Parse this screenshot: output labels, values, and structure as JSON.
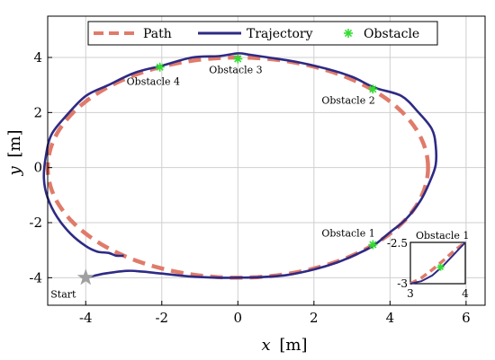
{
  "chart_data": {
    "type": "line",
    "xlabel_var": "x",
    "xlabel_unit": "[m]",
    "ylabel_var": "y",
    "ylabel_unit": "[m]",
    "xlim": [
      -5,
      6.5
    ],
    "ylim": [
      -5,
      5.5
    ],
    "xticks": [
      -4,
      -2,
      0,
      2,
      4,
      6
    ],
    "yticks": [
      -4,
      -2,
      0,
      2,
      4
    ],
    "xtick_labels": [
      "-4",
      "-2",
      "0",
      "2",
      "4",
      "6"
    ],
    "ytick_labels": [
      "-4",
      "-2",
      "0",
      "2",
      "4"
    ],
    "grid": true,
    "legend_position": "top",
    "legend": [
      {
        "name": "Path",
        "style": "dashed",
        "color": "#E07B6A"
      },
      {
        "name": "Trajectory",
        "style": "solid",
        "color": "#2E2A85"
      },
      {
        "name": "Obstacle",
        "style": "marker-asterisk",
        "color": "#33DD33"
      }
    ],
    "path": {
      "name": "Path",
      "shape": "ellipse",
      "center": [
        0,
        0
      ],
      "semi_axes": [
        5,
        4
      ],
      "color": "#E07B6A"
    },
    "trajectory": {
      "name": "Trajectory",
      "color": "#2E2A85",
      "x": [
        -4.0,
        -3.5,
        -2.9,
        -2.5,
        -2.0,
        -1.3,
        -0.5,
        0.0,
        0.6,
        1.3,
        2.0,
        2.6,
        3.2,
        3.6,
        4.0,
        4.4,
        4.8,
        5.05,
        5.2,
        5.2,
        5.1,
        4.75,
        4.3,
        3.6,
        3.0,
        2.3,
        1.5,
        0.8,
        0.3,
        0.0,
        -0.5,
        -1.2,
        -2.0,
        -2.7,
        -3.4,
        -4.0,
        -4.5,
        -4.9,
        -5.05,
        -5.1,
        -5.0,
        -4.75,
        -4.4,
        -4.0,
        -3.7,
        -3.4,
        -3.2,
        -3.0
      ],
      "y": [
        -4.0,
        -3.85,
        -3.75,
        -3.78,
        -3.85,
        -3.95,
        -4.0,
        -4.0,
        -3.98,
        -3.9,
        -3.7,
        -3.45,
        -3.1,
        -2.8,
        -2.35,
        -1.9,
        -1.2,
        -0.5,
        0.1,
        0.8,
        1.4,
        2.0,
        2.6,
        2.9,
        3.3,
        3.6,
        3.85,
        4.0,
        4.1,
        4.15,
        4.05,
        4.0,
        3.7,
        3.45,
        3.0,
        2.6,
        1.9,
        1.2,
        0.4,
        -0.4,
        -1.1,
        -1.8,
        -2.4,
        -2.85,
        -3.05,
        -3.1,
        -3.2,
        -3.2
      ]
    },
    "obstacles": [
      {
        "label": "Obstacle 1",
        "x": 3.55,
        "y": -2.8
      },
      {
        "label": "Obstacle 2",
        "x": 3.55,
        "y": 2.85
      },
      {
        "label": "Obstacle 3",
        "x": 0.0,
        "y": 3.95
      },
      {
        "label": "Obstacle 4",
        "x": -2.05,
        "y": 3.65
      }
    ],
    "start": {
      "label": "Start",
      "x": -4.0,
      "y": -4.0,
      "color": "#A0A0A0"
    },
    "inset": {
      "label": "Obstacle 1",
      "xlim": [
        3,
        4
      ],
      "ylim": [
        -3,
        -2.5
      ],
      "xtick_labels": [
        "3",
        "4"
      ],
      "ytick_labels": [
        "-2.5",
        "-3"
      ],
      "path_x": [
        3.0,
        3.2,
        3.4,
        3.6,
        3.8,
        4.0
      ],
      "path_y": [
        -3.0,
        -2.93,
        -2.83,
        -2.72,
        -2.6,
        -2.5
      ],
      "traj_x": [
        3.0,
        3.2,
        3.4,
        3.6,
        3.8,
        4.0
      ],
      "traj_y": [
        -3.0,
        -2.97,
        -2.9,
        -2.78,
        -2.64,
        -2.5
      ],
      "obstacle_x": 3.55,
      "obstacle_y": -2.8
    }
  }
}
